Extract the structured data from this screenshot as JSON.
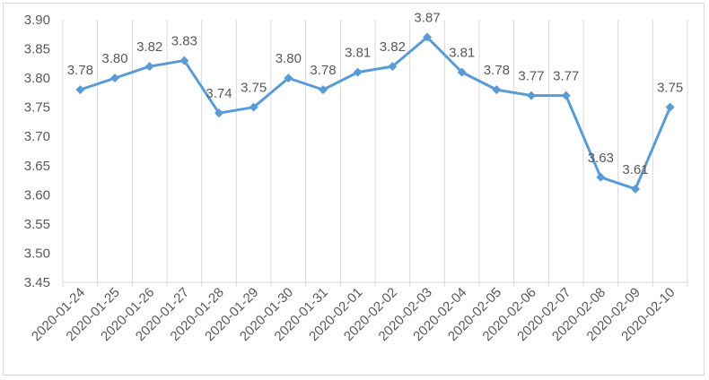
{
  "chart_data": {
    "type": "line",
    "title": "",
    "xlabel": "",
    "ylabel": "",
    "ylim": [
      3.45,
      3.9
    ],
    "y_ticks": [
      "3.45",
      "3.50",
      "3.55",
      "3.60",
      "3.65",
      "3.70",
      "3.75",
      "3.80",
      "3.85",
      "3.90"
    ],
    "grid": "vertical",
    "legend": "none",
    "categories": [
      "2020-01-24",
      "2020-01-25",
      "2020-01-26",
      "2020-01-27",
      "2020-01-28",
      "2020-01-29",
      "2020-01-30",
      "2020-01-31",
      "2020-02-01",
      "2020-02-02",
      "2020-02-03",
      "2020-02-04",
      "2020-02-05",
      "2020-02-06",
      "2020-02-07",
      "2020-02-08",
      "2020-02-09",
      "2020-02-10"
    ],
    "series": [
      {
        "values": [
          3.78,
          3.8,
          3.82,
          3.83,
          3.74,
          3.75,
          3.8,
          3.78,
          3.81,
          3.82,
          3.87,
          3.81,
          3.78,
          3.77,
          3.77,
          3.63,
          3.61,
          3.75
        ],
        "labels": [
          "3.78",
          "3.80",
          "3.82",
          "3.83",
          "3.74",
          "3.75",
          "3.80",
          "3.78",
          "3.81",
          "3.82",
          "3.87",
          "3.81",
          "3.78",
          "3.77",
          "3.77",
          "3.63",
          "3.61",
          "3.75"
        ],
        "color": "#5b9bd5"
      }
    ],
    "gridline_color": "#d9d9d9"
  }
}
